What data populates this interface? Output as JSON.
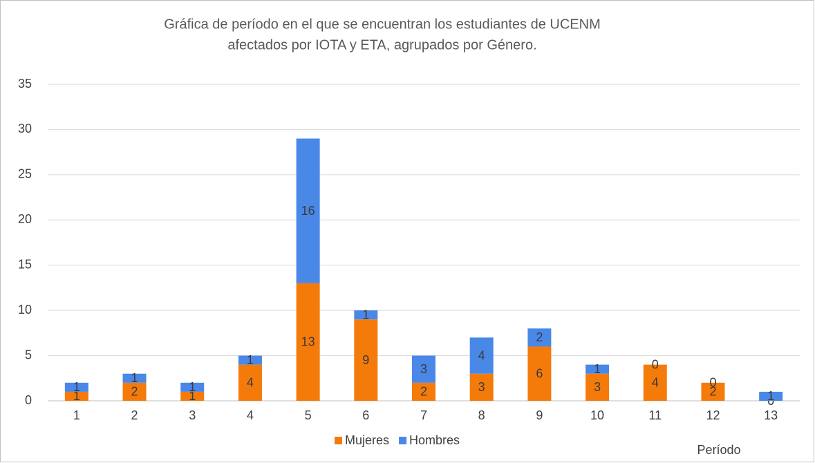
{
  "chart_data": {
    "type": "bar",
    "stacked": true,
    "title": [
      "Gráfica de período en el que se encuentran los estudiantes de UCENM",
      "afectados por IOTA  y ETA, agrupados por Género."
    ],
    "x_label": "Período",
    "categories": [
      "1",
      "2",
      "3",
      "4",
      "5",
      "6",
      "7",
      "8",
      "9",
      "10",
      "11",
      "12",
      "13"
    ],
    "series": [
      {
        "name": "Mujeres",
        "color": "#f47b0a",
        "values": [
          1,
          2,
          1,
          4,
          13,
          9,
          2,
          3,
          6,
          3,
          4,
          2,
          0
        ]
      },
      {
        "name": "Hombres",
        "color": "#4a88e8",
        "values": [
          1,
          1,
          1,
          1,
          16,
          1,
          3,
          4,
          2,
          1,
          0,
          0,
          1
        ]
      }
    ],
    "ylim": [
      0,
      35
    ],
    "yticks": [
      0,
      5,
      10,
      15,
      20,
      25,
      30,
      35
    ],
    "grid": true,
    "legend": "bottom"
  }
}
